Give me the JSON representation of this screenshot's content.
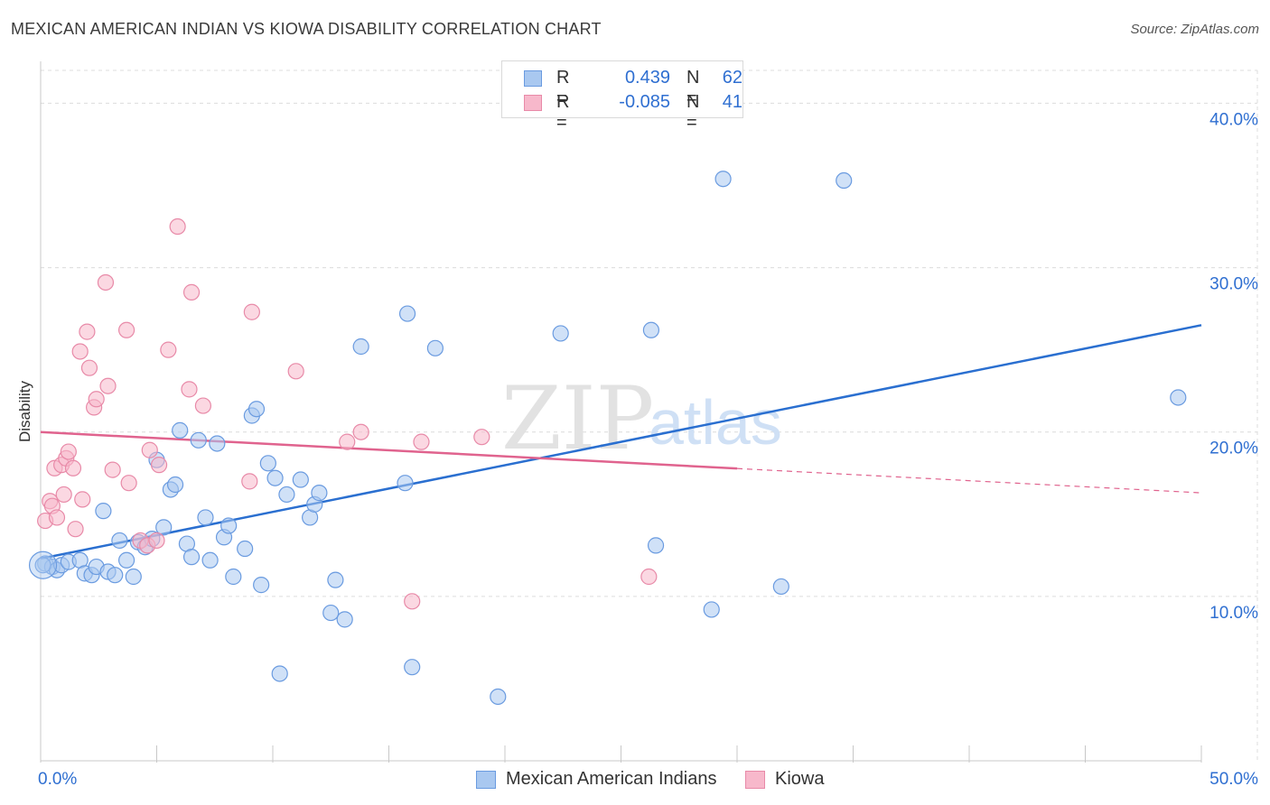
{
  "title": "MEXICAN AMERICAN INDIAN VS KIOWA DISABILITY CORRELATION CHART",
  "source": "Source: ZipAtlas.com",
  "watermark": {
    "zip": "ZIP",
    "atlas": "atlas"
  },
  "colors": {
    "blue_fill": "#a9c8f0",
    "blue_stroke": "#6a9be0",
    "blue_line": "#2a6fd0",
    "pink_fill": "#f7b8cb",
    "pink_stroke": "#e88aa8",
    "pink_line": "#e0638e",
    "axis_label": "#2f6fd1",
    "grid": "#dcdcdc"
  },
  "legend": {
    "series": [
      {
        "r_label": "R =",
        "r_value": "0.439",
        "n_label": "N =",
        "n_value": "62"
      },
      {
        "r_label": "R =",
        "r_value": "-0.085",
        "n_label": "N =",
        "n_value": "41"
      }
    ]
  },
  "bottom_legend": [
    "Mexican American Indians",
    "Kiowa"
  ],
  "chart_data": {
    "type": "scatter",
    "title": "MEXICAN AMERICAN INDIAN VS KIOWA DISABILITY CORRELATION CHART",
    "xlabel": "",
    "ylabel": "Disability",
    "xlim": [
      0,
      50
    ],
    "ylim": [
      0,
      42
    ],
    "x_tick_labels": [
      {
        "value": 0,
        "label": "0.0%"
      },
      {
        "value": 50,
        "label": "50.0%"
      }
    ],
    "x_minor_ticks": [
      0,
      5,
      10,
      15,
      20,
      25,
      30,
      35,
      40,
      45,
      50
    ],
    "y_ticks": [
      {
        "value": 10,
        "label": "10.0%"
      },
      {
        "value": 20,
        "label": "20.0%"
      },
      {
        "value": 30,
        "label": "30.0%"
      },
      {
        "value": 40,
        "label": "40.0%"
      }
    ],
    "grid": true,
    "series": [
      {
        "name": "Mexican American Indians",
        "color": "blue",
        "trend": {
          "x0": 0,
          "y0": 12.3,
          "x1": 50,
          "y1": 26.5,
          "solid_until": 50
        },
        "points": [
          [
            0.2,
            12.0
          ],
          [
            0.5,
            11.8
          ],
          [
            0.7,
            11.6
          ],
          [
            0.9,
            11.9
          ],
          [
            1.2,
            12.1
          ],
          [
            1.7,
            12.2
          ],
          [
            1.9,
            11.4
          ],
          [
            2.2,
            11.3
          ],
          [
            2.4,
            11.8
          ],
          [
            2.7,
            15.2
          ],
          [
            2.9,
            11.5
          ],
          [
            3.2,
            11.3
          ],
          [
            3.4,
            13.4
          ],
          [
            3.7,
            12.2
          ],
          [
            4.0,
            11.2
          ],
          [
            4.2,
            13.3
          ],
          [
            4.5,
            13.0
          ],
          [
            4.8,
            13.5
          ],
          [
            5.0,
            18.3
          ],
          [
            5.3,
            14.2
          ],
          [
            5.6,
            16.5
          ],
          [
            5.8,
            16.8
          ],
          [
            6.0,
            20.1
          ],
          [
            6.3,
            13.2
          ],
          [
            6.5,
            12.4
          ],
          [
            6.8,
            19.5
          ],
          [
            7.1,
            14.8
          ],
          [
            7.3,
            12.2
          ],
          [
            7.6,
            19.3
          ],
          [
            7.9,
            13.6
          ],
          [
            8.1,
            14.3
          ],
          [
            8.3,
            11.2
          ],
          [
            8.8,
            12.9
          ],
          [
            9.1,
            21.0
          ],
          [
            9.3,
            21.4
          ],
          [
            9.5,
            10.7
          ],
          [
            9.8,
            18.1
          ],
          [
            10.1,
            17.2
          ],
          [
            10.3,
            5.3
          ],
          [
            10.6,
            16.2
          ],
          [
            11.2,
            17.1
          ],
          [
            11.6,
            14.8
          ],
          [
            11.8,
            15.6
          ],
          [
            12.0,
            16.3
          ],
          [
            12.5,
            9.0
          ],
          [
            12.7,
            11.0
          ],
          [
            13.1,
            8.6
          ],
          [
            13.8,
            25.2
          ],
          [
            15.7,
            16.9
          ],
          [
            15.8,
            27.2
          ],
          [
            16.0,
            5.7
          ],
          [
            17.0,
            25.1
          ],
          [
            19.7,
            3.9
          ],
          [
            22.4,
            26.0
          ],
          [
            26.3,
            26.2
          ],
          [
            26.5,
            13.1
          ],
          [
            28.9,
            9.2
          ],
          [
            29.4,
            35.4
          ],
          [
            31.9,
            10.6
          ],
          [
            34.6,
            35.3
          ],
          [
            49.0,
            22.1
          ],
          [
            0.1,
            11.9
          ]
        ]
      },
      {
        "name": "Kiowa",
        "color": "pink",
        "trend": {
          "x0": 0,
          "y0": 20.0,
          "x1": 50,
          "y1": 16.3,
          "solid_until": 30
        },
        "points": [
          [
            0.2,
            14.6
          ],
          [
            0.4,
            15.8
          ],
          [
            0.5,
            15.5
          ],
          [
            0.6,
            17.8
          ],
          [
            0.7,
            14.8
          ],
          [
            0.9,
            18.0
          ],
          [
            1.0,
            16.2
          ],
          [
            1.1,
            18.4
          ],
          [
            1.2,
            18.8
          ],
          [
            1.4,
            17.8
          ],
          [
            1.5,
            14.1
          ],
          [
            1.7,
            24.9
          ],
          [
            1.8,
            15.9
          ],
          [
            2.0,
            26.1
          ],
          [
            2.1,
            23.9
          ],
          [
            2.3,
            21.5
          ],
          [
            2.4,
            22.0
          ],
          [
            2.8,
            29.1
          ],
          [
            2.9,
            22.8
          ],
          [
            3.1,
            17.7
          ],
          [
            3.7,
            26.2
          ],
          [
            3.8,
            16.9
          ],
          [
            4.3,
            13.4
          ],
          [
            4.6,
            13.1
          ],
          [
            4.7,
            18.9
          ],
          [
            5.0,
            13.4
          ],
          [
            5.1,
            18.0
          ],
          [
            5.5,
            25.0
          ],
          [
            5.9,
            32.5
          ],
          [
            6.4,
            22.6
          ],
          [
            6.5,
            28.5
          ],
          [
            7.0,
            21.6
          ],
          [
            9.0,
            17.0
          ],
          [
            9.1,
            27.3
          ],
          [
            11.0,
            23.7
          ],
          [
            13.2,
            19.4
          ],
          [
            13.8,
            20.0
          ],
          [
            16.0,
            9.7
          ],
          [
            16.4,
            19.4
          ],
          [
            19.0,
            19.7
          ],
          [
            26.2,
            11.2
          ]
        ]
      }
    ]
  }
}
